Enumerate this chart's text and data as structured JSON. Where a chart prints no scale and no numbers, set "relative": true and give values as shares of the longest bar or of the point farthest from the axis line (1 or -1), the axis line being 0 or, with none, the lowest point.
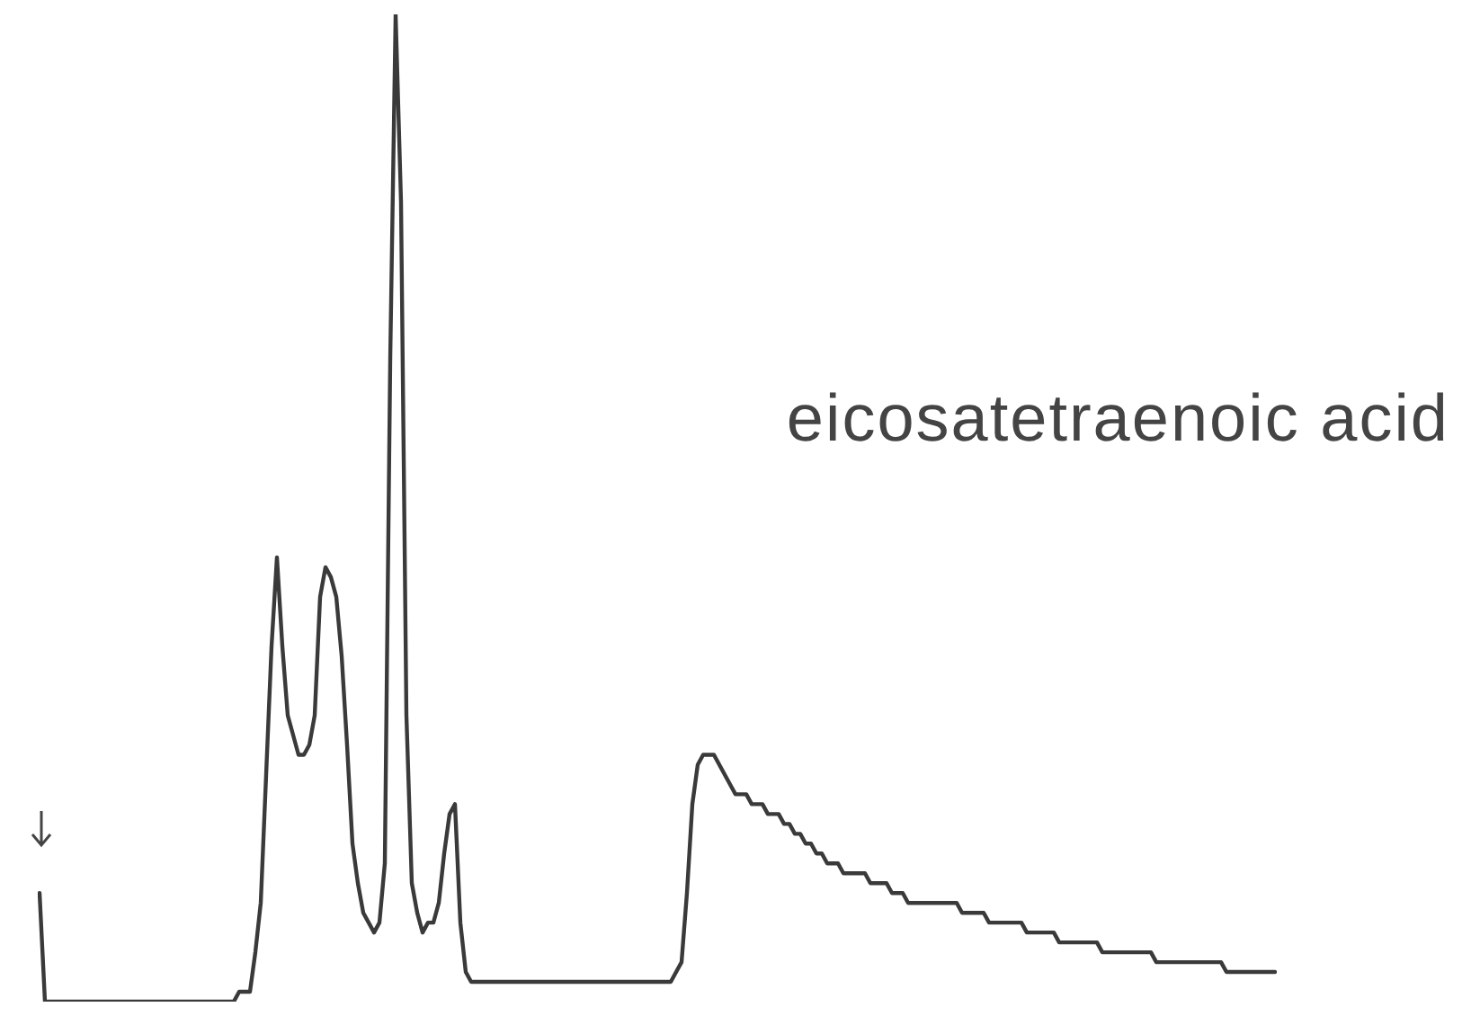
{
  "chart_data": {
    "type": "line",
    "relative": true,
    "annotations": [
      "eicosatetraenoic acid"
    ],
    "grid": false,
    "legend": false,
    "marker": "none",
    "line_style": "solid",
    "categories": [
      null,
      null,
      null,
      null,
      null,
      null,
      null,
      null,
      null,
      null,
      null,
      null,
      null,
      null,
      null,
      null,
      null,
      null,
      null,
      null,
      null,
      null,
      null,
      null,
      null,
      null,
      null,
      null,
      null,
      null,
      null,
      null,
      null,
      null,
      null,
      null,
      null,
      null,
      null,
      null,
      null,
      null,
      null,
      null,
      null,
      null,
      null,
      null,
      null,
      null,
      null,
      null,
      null,
      null,
      null,
      null,
      null,
      null,
      null,
      null,
      null,
      null,
      null,
      null,
      null,
      null,
      null,
      null,
      null,
      null,
      null,
      null,
      null,
      null,
      null,
      null,
      null,
      null,
      null,
      null,
      null,
      null,
      null,
      null,
      null,
      null,
      null,
      null,
      null,
      null,
      null,
      null,
      null,
      null,
      null,
      null,
      null,
      null,
      null,
      null,
      null,
      null,
      null,
      null,
      null,
      null,
      null,
      null,
      null,
      null,
      null,
      null,
      null,
      null,
      null,
      null,
      null,
      null,
      null,
      null,
      null,
      null,
      null,
      null,
      null,
      null,
      null,
      null,
      null,
      null,
      null,
      null,
      null,
      null,
      null,
      null,
      null,
      null,
      null,
      null,
      null,
      null,
      null,
      null,
      null,
      null,
      null,
      null,
      null,
      null,
      null,
      null,
      null,
      null,
      null,
      null,
      null,
      null,
      null,
      null,
      null,
      null,
      null,
      null,
      null,
      null,
      null,
      null,
      null,
      null,
      null,
      null,
      null,
      null,
      null,
      null,
      null,
      null,
      null,
      null,
      null,
      null,
      null,
      null,
      null,
      null,
      null,
      null,
      null,
      null,
      null,
      null,
      null,
      null,
      null,
      null,
      null,
      null,
      null,
      null,
      null,
      null,
      null,
      null,
      null,
      null,
      null,
      null,
      null,
      null,
      null,
      null,
      null,
      null,
      null,
      null,
      null,
      null,
      null,
      null,
      null,
      null,
      null,
      null,
      null,
      null,
      null,
      null,
      null,
      null
    ],
    "series": [
      {
        "color": "#3a3a3a",
        "values": [
          0.11,
          0,
          0,
          0,
          0,
          0,
          0,
          0,
          0,
          0,
          0,
          0,
          0,
          0,
          0,
          0,
          0,
          0,
          0,
          0,
          0,
          0,
          0,
          0,
          0,
          0,
          0,
          0,
          0,
          0,
          0,
          0,
          0,
          0,
          0,
          0,
          0,
          0.01,
          0.01,
          0.01,
          0.05,
          0.1,
          0.23,
          0.36,
          0.45,
          0.36,
          0.29,
          0.27,
          0.25,
          0.25,
          0.26,
          0.29,
          0.41,
          0.44,
          0.43,
          0.41,
          0.35,
          0.26,
          0.16,
          0.12,
          0.09,
          0.08,
          0.07,
          0.08,
          0.14,
          0.65,
          1,
          0.81,
          0.29,
          0.12,
          0.09,
          0.07,
          0.08,
          0.08,
          0.1,
          0.15,
          0.19,
          0.2,
          0.08,
          0.03,
          0.02,
          0.02,
          0.02,
          0.02,
          0.02,
          0.02,
          0.02,
          0.02,
          0.02,
          0.02,
          0.02,
          0.02,
          0.02,
          0.02,
          0.02,
          0.02,
          0.02,
          0.02,
          0.02,
          0.02,
          0.02,
          0.02,
          0.02,
          0.02,
          0.02,
          0.02,
          0.02,
          0.02,
          0.02,
          0.02,
          0.02,
          0.02,
          0.02,
          0.02,
          0.02,
          0.02,
          0.02,
          0.02,
          0.03,
          0.04,
          0.11,
          0.2,
          0.24,
          0.25,
          0.25,
          0.25,
          0.24,
          0.23,
          0.22,
          0.21,
          0.21,
          0.21,
          0.2,
          0.2,
          0.2,
          0.19,
          0.19,
          0.19,
          0.18,
          0.18,
          0.17,
          0.17,
          0.16,
          0.16,
          0.15,
          0.15,
          0.14,
          0.14,
          0.14,
          0.13,
          0.13,
          0.13,
          0.13,
          0.13,
          0.12,
          0.12,
          0.12,
          0.12,
          0.11,
          0.11,
          0.11,
          0.1,
          0.1,
          0.1,
          0.1,
          0.1,
          0.1,
          0.1,
          0.1,
          0.1,
          0.1,
          0.09,
          0.09,
          0.09,
          0.09,
          0.09,
          0.08,
          0.08,
          0.08,
          0.08,
          0.08,
          0.08,
          0.08,
          0.07,
          0.07,
          0.07,
          0.07,
          0.07,
          0.07,
          0.06,
          0.06,
          0.06,
          0.06,
          0.06,
          0.06,
          0.06,
          0.06,
          0.05,
          0.05,
          0.05,
          0.05,
          0.05,
          0.05,
          0.05,
          0.05,
          0.05,
          0.05,
          0.04,
          0.04,
          0.04,
          0.04,
          0.04,
          0.04,
          0.04,
          0.04,
          0.04,
          0.04,
          0.04,
          0.04,
          0.04,
          0.03,
          0.03,
          0.03,
          0.03,
          0.03,
          0.03,
          0.03,
          0.03,
          0.03,
          0.03
        ]
      }
    ]
  }
}
